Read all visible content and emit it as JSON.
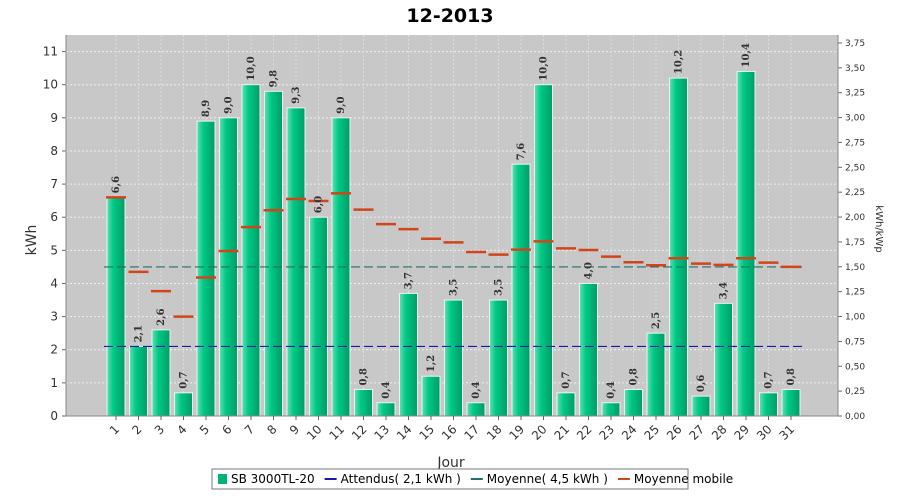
{
  "chart_data": {
    "type": "bar",
    "title": "12-2013",
    "xlabel": "Jour",
    "ylabel": "kWh",
    "ylabel_right": "kWh/kWp",
    "ylim": [
      0,
      11.5
    ],
    "ylim_right": [
      0,
      3.83
    ],
    "yticks": [
      "0",
      "1",
      "2",
      "3",
      "4",
      "5",
      "6",
      "7",
      "8",
      "9",
      "10",
      "11"
    ],
    "yticks_right": [
      "0,00",
      "0,25",
      "0,50",
      "0,75",
      "1,00",
      "1,25",
      "1,50",
      "1,75",
      "2,00",
      "2,25",
      "2,50",
      "2,75",
      "3,00",
      "3,25",
      "3,50",
      "3,75"
    ],
    "categories": [
      "1",
      "2",
      "3",
      "4",
      "5",
      "6",
      "7",
      "8",
      "9",
      "10",
      "11",
      "12",
      "13",
      "14",
      "15",
      "16",
      "17",
      "18",
      "19",
      "20",
      "21",
      "22",
      "23",
      "24",
      "25",
      "26",
      "27",
      "28",
      "29",
      "30",
      "31"
    ],
    "series": [
      {
        "name": "SB 3000TL-20",
        "kind": "bar",
        "color": "#00b37a",
        "values": [
          6.6,
          2.1,
          2.6,
          0.7,
          8.9,
          9.0,
          10.0,
          9.8,
          9.3,
          6.0,
          9.0,
          0.8,
          0.4,
          3.7,
          1.2,
          3.5,
          0.4,
          3.5,
          7.6,
          10.0,
          0.7,
          4.0,
          0.4,
          0.8,
          2.5,
          10.2,
          0.6,
          3.4,
          10.4,
          0.7,
          0.8
        ],
        "labels": [
          "6,6",
          "2,1",
          "2,6",
          "0,7",
          "8,9",
          "9,0",
          "10,0",
          "9,8",
          "9,3",
          "6,0",
          "9,0",
          "0,8",
          "0,4",
          "3,7",
          "1,2",
          "3,5",
          "0,4",
          "3,5",
          "7,6",
          "10,0",
          "0,7",
          "4,0",
          "0,4",
          "0,8",
          "2,5",
          "10,2",
          "0,6",
          "3,4",
          "10,4",
          "0,7",
          "0,8"
        ]
      },
      {
        "name": "Attendus( 2,1 kWh )",
        "kind": "dashed-line",
        "color": "#1a1aaa",
        "value": 2.1
      },
      {
        "name": "Moyenne( 4,5 kWh )",
        "kind": "dashed-line",
        "color": "#1f6f6a",
        "value": 4.5
      },
      {
        "name": "Moyenne mobile",
        "kind": "step-markers",
        "color": "#d2441a",
        "values": [
          6.6,
          4.35,
          3.77,
          3.0,
          4.18,
          4.98,
          5.7,
          6.21,
          6.55,
          6.49,
          6.72,
          6.23,
          5.79,
          5.64,
          5.35,
          5.24,
          4.95,
          4.87,
          5.02,
          5.27,
          5.06,
          5.01,
          4.81,
          4.64,
          4.55,
          4.76,
          4.6,
          4.56,
          4.76,
          4.63,
          4.5
        ]
      }
    ],
    "grid": true,
    "legend_position": "bottom"
  }
}
